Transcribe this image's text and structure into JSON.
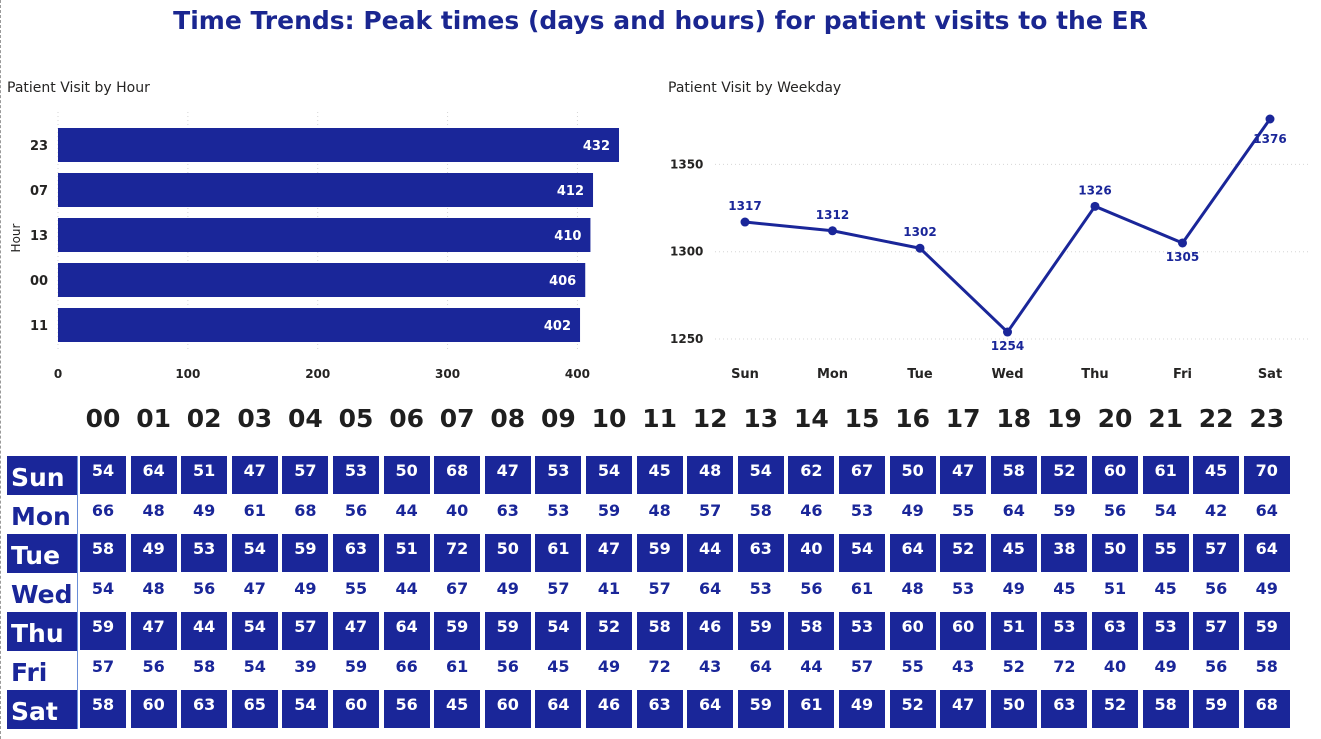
{
  "page": {
    "title": "Time Trends: Peak times (days and hours) for patient visits to the ER"
  },
  "colors": {
    "accent": "#1a2699",
    "text_on_accent": "#ffffff",
    "text_plain": "#1a2699"
  },
  "chart_data": [
    {
      "type": "bar",
      "orientation": "horizontal",
      "title": "Patient Visit by Hour",
      "xlabel": "",
      "ylabel": "Hour",
      "categories": [
        "23",
        "07",
        "13",
        "00",
        "11"
      ],
      "values": [
        432,
        412,
        410,
        406,
        402
      ],
      "xlim": [
        0,
        432
      ],
      "x_ticks": [
        0,
        100,
        200,
        300,
        400
      ],
      "grid": true,
      "data_labels": true
    },
    {
      "type": "line",
      "title": "Patient Visit by Weekday",
      "xlabel": "",
      "ylabel": "",
      "categories": [
        "Sun",
        "Mon",
        "Tue",
        "Wed",
        "Thu",
        "Fri",
        "Sat"
      ],
      "values": [
        1317,
        1312,
        1302,
        1254,
        1326,
        1305,
        1376
      ],
      "ylim": [
        1238,
        1376
      ],
      "y_ticks": [
        1250,
        1300,
        1350
      ],
      "grid": true,
      "markers": true,
      "data_labels": true
    },
    {
      "type": "heatmap",
      "columns": [
        "00",
        "01",
        "02",
        "03",
        "04",
        "05",
        "06",
        "07",
        "08",
        "09",
        "10",
        "11",
        "12",
        "13",
        "14",
        "15",
        "16",
        "17",
        "18",
        "19",
        "20",
        "21",
        "22",
        "23"
      ],
      "rows": [
        "Sun",
        "Mon",
        "Tue",
        "Wed",
        "Thu",
        "Fri",
        "Sat"
      ],
      "highlighted_rows": [
        "Sun",
        "Tue",
        "Thu",
        "Sat"
      ],
      "values": [
        [
          54,
          64,
          51,
          47,
          57,
          53,
          50,
          68,
          47,
          53,
          54,
          45,
          48,
          54,
          62,
          67,
          50,
          47,
          58,
          52,
          60,
          61,
          45,
          70
        ],
        [
          66,
          48,
          49,
          61,
          68,
          56,
          44,
          40,
          63,
          53,
          59,
          48,
          57,
          58,
          46,
          53,
          49,
          55,
          64,
          59,
          56,
          54,
          42,
          64
        ],
        [
          58,
          49,
          53,
          54,
          59,
          63,
          51,
          72,
          50,
          61,
          47,
          59,
          44,
          63,
          40,
          54,
          64,
          52,
          45,
          38,
          50,
          55,
          57,
          64
        ],
        [
          54,
          48,
          56,
          47,
          49,
          55,
          44,
          67,
          49,
          57,
          41,
          57,
          64,
          53,
          56,
          61,
          48,
          53,
          49,
          45,
          51,
          45,
          56,
          49
        ],
        [
          59,
          47,
          44,
          54,
          57,
          47,
          64,
          59,
          59,
          54,
          52,
          58,
          46,
          59,
          58,
          53,
          60,
          60,
          51,
          53,
          63,
          53,
          57,
          59
        ],
        [
          57,
          56,
          58,
          54,
          39,
          59,
          66,
          61,
          56,
          45,
          49,
          72,
          43,
          64,
          44,
          57,
          55,
          43,
          52,
          72,
          40,
          49,
          56,
          58
        ],
        [
          58,
          60,
          63,
          65,
          54,
          60,
          56,
          45,
          60,
          64,
          46,
          63,
          64,
          59,
          61,
          49,
          52,
          47,
          50,
          63,
          52,
          58,
          59,
          68
        ]
      ]
    }
  ]
}
